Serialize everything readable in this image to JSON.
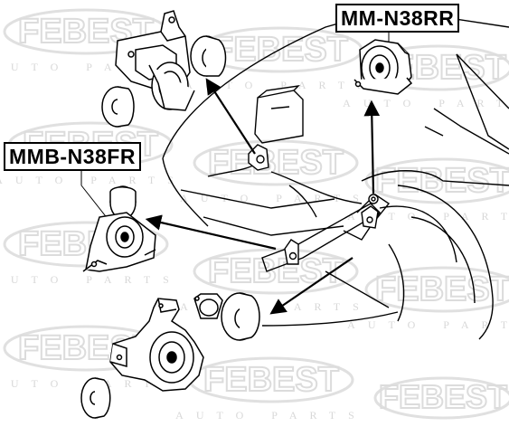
{
  "labels": {
    "rear_right": "MM-N38RR",
    "front_right": "MMB-N38FR"
  },
  "watermark": {
    "brand": "FEBEST",
    "tagline": "AUTO PARTS"
  },
  "colors": {
    "line": "#000000",
    "watermark": "#e2e2e2",
    "background": "#ffffff"
  }
}
